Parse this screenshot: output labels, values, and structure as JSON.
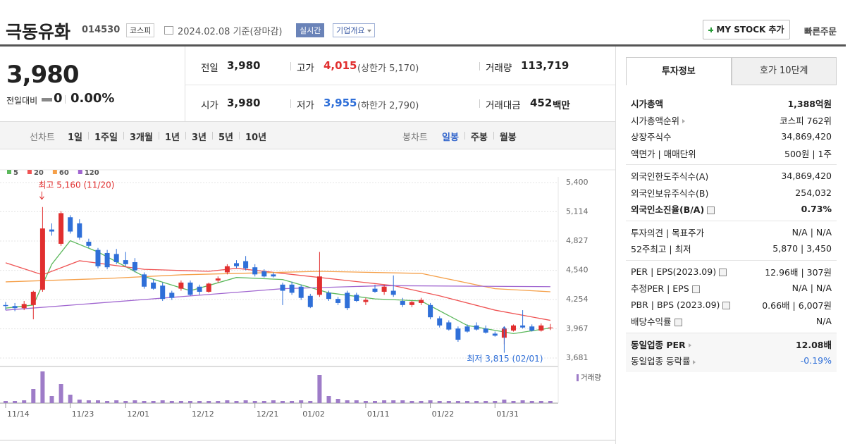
{
  "header": {
    "name": "극동유화",
    "code": "014530",
    "market": "코스피",
    "date": "2024.02.08 기준(장마감)",
    "realtime": "실시간",
    "company": "기업개요",
    "mystock": "MY STOCK 추가",
    "quick_order": "빠른주문"
  },
  "quote": {
    "price": "3,980",
    "change_label": "전일대비",
    "change": "0",
    "change_pct": "0.00%",
    "prev_label": "전일",
    "prev": "3,980",
    "high_label": "고가",
    "high": "4,015",
    "upper": "(상한가 5,170)",
    "volume_label": "거래량",
    "volume": "113,719",
    "open_label": "시가",
    "open": "3,980",
    "low_label": "저가",
    "low": "3,955",
    "lower": "(하한가 2,790)",
    "amount_label": "거래대금",
    "amount": "452",
    "amount_unit": "백만"
  },
  "period_tabs": {
    "line_label": "선차트",
    "line": [
      "1일",
      "1주일",
      "3개월",
      "1년",
      "3년",
      "5년",
      "10년"
    ],
    "candle_label": "봉차트",
    "candle": [
      "일봉",
      "주봉",
      "월봉"
    ],
    "active": 0
  },
  "chart_data": {
    "type": "candlestick",
    "categories": [
      "11/14",
      null,
      null,
      null,
      null,
      null,
      null,
      "11/23",
      null,
      null,
      null,
      null,
      null,
      "12/01",
      null,
      null,
      null,
      null,
      null,
      null,
      "12/12",
      null,
      null,
      null,
      null,
      null,
      null,
      "12/21",
      null,
      null,
      null,
      null,
      "01/02",
      null,
      null,
      null,
      null,
      null,
      null,
      "01/11",
      null,
      null,
      null,
      null,
      null,
      null,
      "01/22",
      null,
      null,
      null,
      null,
      null,
      null,
      "01/31",
      null,
      null,
      null,
      null,
      null,
      null
    ],
    "open": [
      4200,
      4190,
      4170,
      4200,
      4350,
      4940,
      4800,
      5060,
      5000,
      4820,
      4740,
      4710,
      4700,
      4640,
      4620,
      4500,
      4420,
      4390,
      4320,
      4360,
      4420,
      4380,
      4330,
      4440,
      4520,
      4610,
      4630,
      4570,
      4530,
      4500,
      4400,
      4400,
      4380,
      4290,
      4300,
      4320,
      4260,
      4320,
      4300,
      4230,
      4360,
      4330,
      4340,
      4240,
      4200,
      4220,
      4200,
      4070,
      4030,
      3970,
      3990,
      4000,
      3970,
      3920,
      3880,
      3950,
      4000,
      3990,
      3950,
      3980
    ],
    "high": [
      4230,
      4220,
      4240,
      4340,
      5160,
      5000,
      5120,
      5080,
      5040,
      4850,
      4760,
      4740,
      4750,
      4720,
      4660,
      4520,
      4450,
      4420,
      4340,
      4440,
      4440,
      4400,
      4420,
      4480,
      4600,
      4640,
      4680,
      4600,
      4550,
      4520,
      4420,
      4430,
      4400,
      4310,
      4720,
      4340,
      4280,
      4340,
      4320,
      4270,
      4400,
      4400,
      4490,
      4270,
      4240,
      4270,
      4220,
      4090,
      4050,
      3990,
      4010,
      4030,
      4000,
      3940,
      3990,
      4010,
      4150,
      4010,
      4020,
      4015
    ],
    "low": [
      4150,
      4140,
      4150,
      4060,
      4330,
      4880,
      4780,
      4900,
      4840,
      4760,
      4560,
      4550,
      4600,
      4580,
      4520,
      4360,
      4350,
      4240,
      4250,
      4340,
      4290,
      4300,
      4320,
      4420,
      4500,
      4560,
      4540,
      4480,
      4470,
      4470,
      4200,
      4300,
      4250,
      4170,
      4280,
      4240,
      4200,
      4150,
      4230,
      4200,
      4320,
      4300,
      4280,
      4180,
      4180,
      4200,
      4060,
      3980,
      3950,
      3840,
      3930,
      3950,
      3920,
      3890,
      3815,
      3940,
      3970,
      3940,
      3940,
      3955
    ],
    "close": [
      4190,
      4170,
      4210,
      4330,
      4950,
      4920,
      5100,
      4920,
      4860,
      4780,
      4580,
      4570,
      4620,
      4600,
      4540,
      4380,
      4360,
      4260,
      4270,
      4420,
      4300,
      4330,
      4410,
      4460,
      4580,
      4580,
      4560,
      4500,
      4480,
      4480,
      4340,
      4320,
      4270,
      4180,
      4480,
      4260,
      4220,
      4170,
      4240,
      4250,
      4330,
      4380,
      4300,
      4200,
      4230,
      4250,
      4080,
      4000,
      3960,
      3860,
      3940,
      3960,
      3930,
      3900,
      3970,
      4000,
      3980,
      3950,
      4000,
      3980
    ],
    "volume": [
      114000,
      114000,
      152000,
      760000,
      1710000,
      380000,
      1026000,
      456000,
      190000,
      152000,
      152000,
      114000,
      152000,
      114000,
      152000,
      114000,
      114000,
      152000,
      114000,
      114000,
      114000,
      114000,
      114000,
      114000,
      152000,
      114000,
      152000,
      114000,
      114000,
      152000,
      114000,
      114000,
      152000,
      114000,
      1520000,
      380000,
      228000,
      152000,
      152000,
      114000,
      114000,
      152000,
      152000,
      152000,
      114000,
      114000,
      152000,
      114000,
      114000,
      114000,
      114000,
      114000,
      114000,
      114000,
      190000,
      114000,
      152000,
      114000,
      114000,
      113719
    ],
    "volume_label": "거래량",
    "volume_color": "#9e7cc8",
    "up_color": "#e12f2f",
    "down_color": "#2f6fd8",
    "ylim": [
      3681,
      5400
    ],
    "yticks": [
      {
        "value": 5400,
        "label": "5,400"
      },
      {
        "value": 5114,
        "label": "5,114"
      },
      {
        "value": 4827,
        "label": "4,827"
      },
      {
        "value": 4540,
        "label": "4,540"
      },
      {
        "value": 4254,
        "label": "4,254"
      },
      {
        "value": 3967,
        "label": "3,967"
      },
      {
        "value": 3681,
        "label": "3,681"
      }
    ],
    "grid": true,
    "moving_averages": [
      {
        "name": "5",
        "color": "#5cb85c",
        "x": [
          0,
          3,
          5,
          7,
          10,
          15,
          20,
          25,
          30,
          35,
          40,
          45,
          50,
          55,
          59
        ],
        "values": [
          4170,
          4200,
          4600,
          4830,
          4720,
          4480,
          4340,
          4470,
          4450,
          4320,
          4260,
          4240,
          4000,
          3920,
          3975
        ]
      },
      {
        "name": "20",
        "color": "#ef5454",
        "x": [
          0,
          4,
          8,
          15,
          22,
          25,
          30,
          42,
          47,
          53,
          59
        ],
        "values": [
          4614,
          4496,
          4634,
          4550,
          4530,
          4560,
          4510,
          4390,
          4290,
          4150,
          4050
        ]
      },
      {
        "name": "60",
        "color": "#f5a04a",
        "x": [
          0,
          11,
          19,
          34,
          45,
          53,
          59
        ],
        "values": [
          4427,
          4460,
          4496,
          4530,
          4510,
          4360,
          4330
        ]
      },
      {
        "name": "120",
        "color": "#a066d0",
        "x": [
          0,
          15,
          30,
          41,
          59
        ],
        "values": [
          4150,
          4254,
          4360,
          4390,
          4380
        ]
      }
    ],
    "annotations": {
      "high": "최고 5,160 (11/20)",
      "low": "최저 3,815 (02/01)"
    }
  },
  "info": {
    "tabs": [
      "투자정보",
      "호가 10단계"
    ],
    "sections": [
      {
        "rows": [
          {
            "label": "시가총액",
            "value": "1,388억원",
            "bold": true
          },
          {
            "label": "시가총액순위",
            "value": "코스피 762위",
            "arrow": true
          },
          {
            "label": "상장주식수",
            "value": "34,869,420"
          },
          {
            "label": "액면가 | 매매단위",
            "value": "500원 | 1주"
          }
        ]
      },
      {
        "rows": [
          {
            "label": "외국인한도주식수(A)",
            "value": "34,869,420"
          },
          {
            "label": "외국인보유주식수(B)",
            "value": "254,032"
          },
          {
            "label": "외국인소진율(B/A)",
            "value": "0.73%",
            "bold": true,
            "help": true
          }
        ]
      },
      {
        "rows": [
          {
            "label": "투자의견 | 목표주가",
            "value": "N/A | N/A"
          },
          {
            "label": "52주최고 | 최저",
            "value": "5,870 | 3,450"
          }
        ]
      },
      {
        "rows": [
          {
            "label": "PER | EPS(2023.09)",
            "value": "12.96배 | 307원",
            "help": true
          },
          {
            "label": "추정PER | EPS",
            "value": "N/A | N/A",
            "help": true
          },
          {
            "label": "PBR | BPS (2023.09)",
            "value": "0.66배 | 6,007원",
            "help": true
          },
          {
            "label": "배당수익률",
            "value": "N/A",
            "help": true
          }
        ]
      },
      {
        "shaded": true,
        "rows": [
          {
            "label": "동일업종 PER",
            "value": "12.08배",
            "bold": true,
            "arrow": true
          },
          {
            "label": "동일업종 등락률",
            "value": "-0.19%",
            "arrow": true,
            "color": "#2f6fd8"
          }
        ]
      }
    ]
  }
}
